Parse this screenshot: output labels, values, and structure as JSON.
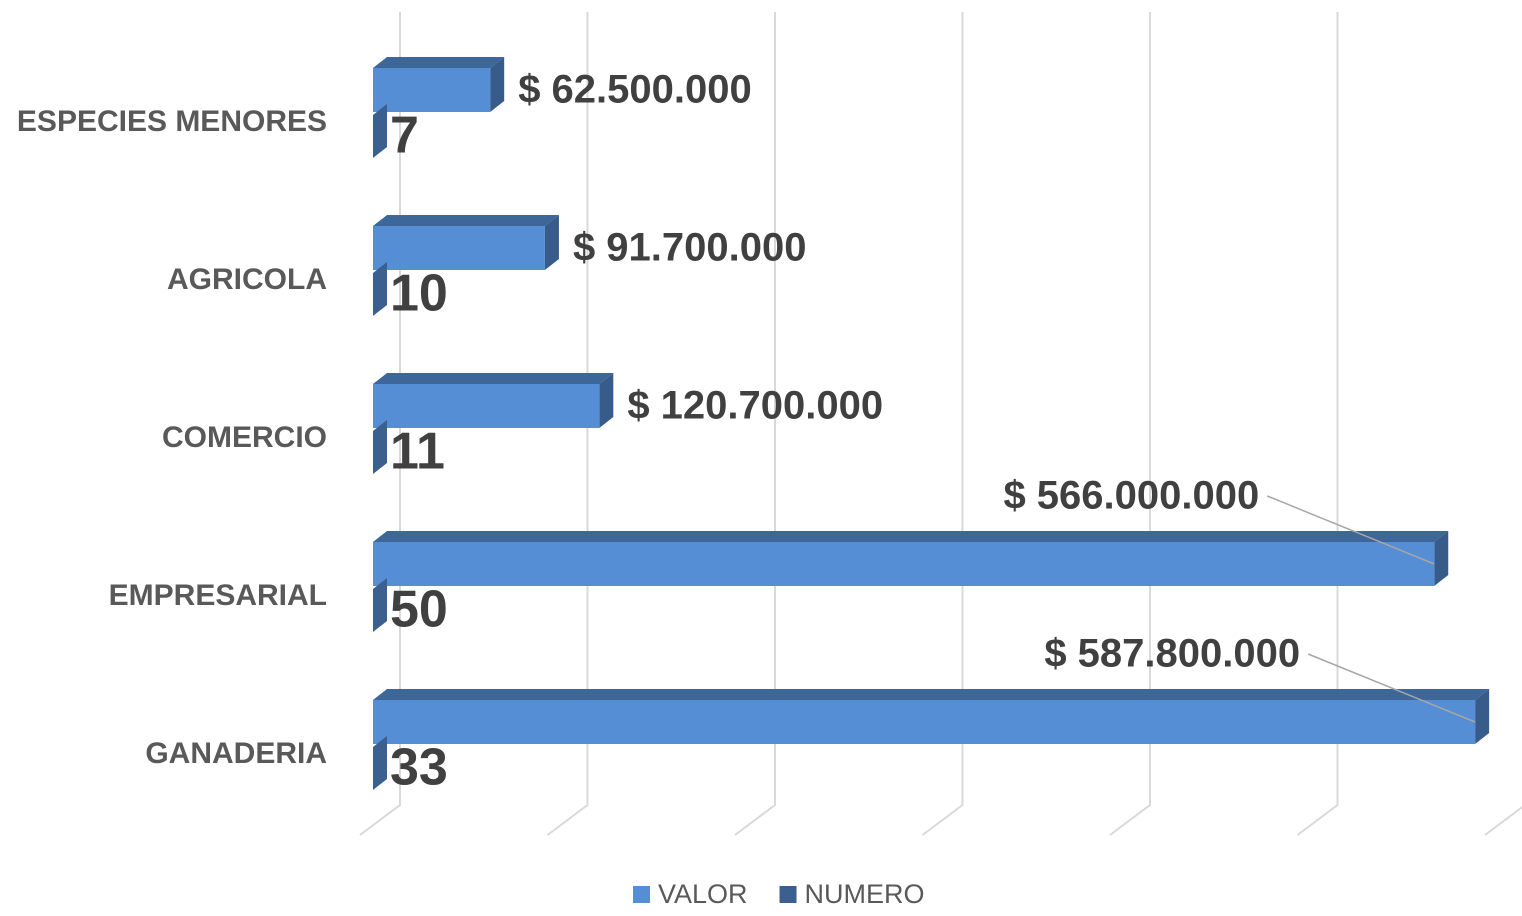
{
  "chart_data": {
    "type": "bar",
    "orientation": "horizontal",
    "categories": [
      "ESPECIES  MENORES",
      "AGRICOLA",
      "COMERCIO",
      "EMPRESARIAL",
      "GANADERIA"
    ],
    "series": [
      {
        "name": "VALOR",
        "color": "#558ed5",
        "values": [
          62500000,
          91700000,
          120700000,
          566000000,
          587800000
        ],
        "value_labels": [
          "$ 62.500.000",
          "$ 91.700.000",
          "$ 120.700.000",
          "$ 566.000.000",
          "$ 587.800.000"
        ]
      },
      {
        "name": "NUMERO",
        "color": "#3b5f8f",
        "values": [
          7,
          10,
          11,
          50,
          33
        ]
      }
    ],
    "xlim": [
      0,
      600000000
    ],
    "xticks": [
      0,
      100000000,
      200000000,
      300000000,
      400000000,
      500000000,
      600000000
    ],
    "grid": true,
    "legend": "bottom"
  }
}
